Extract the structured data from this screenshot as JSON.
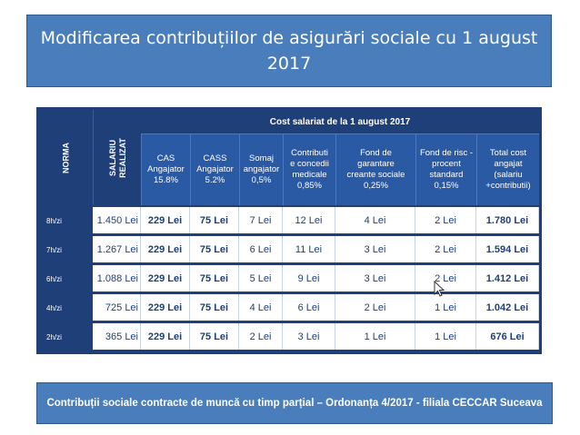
{
  "title": "Modificarea contribuțiilor de asigurări sociale cu 1 august 2017",
  "table": {
    "super_header": "Cost salariat de la  1 august 2017",
    "left_headers": {
      "norma": "NORMA",
      "salariu": [
        "SALARIU",
        "REALIZAT"
      ]
    },
    "columns": [
      {
        "lines": [
          "CAS",
          "Angajator",
          "15.8%"
        ]
      },
      {
        "lines": [
          "CASS",
          "Angajator",
          "5.2%"
        ]
      },
      {
        "lines": [
          "Somaj",
          "angajator",
          "0,5%"
        ]
      },
      {
        "lines": [
          "Contributi",
          "e concedii",
          "medicale",
          "0,85%"
        ]
      },
      {
        "lines": [
          "Fond de",
          "garantare",
          "creante sociale",
          "0,25%"
        ]
      },
      {
        "lines": [
          "Fond de risc -",
          "procent",
          "standard",
          "0,15%"
        ]
      },
      {
        "lines": [
          "Total cost",
          "angajat",
          "(salariu",
          "+contributii)"
        ]
      }
    ],
    "rows": [
      {
        "norma": "8h/zi",
        "salariu": "1.450 Lei",
        "cells": [
          "229 Lei",
          "75 Lei",
          "7 Lei",
          "12 Lei",
          "4 Lei",
          "2 Lei",
          "1.780 Lei"
        ]
      },
      {
        "norma": "7h/zi",
        "salariu": "1.267 Lei",
        "cells": [
          "229 Lei",
          "75 Lei",
          "6 Lei",
          "11 Lei",
          "3 Lei",
          "2 Lei",
          "1.594 Lei"
        ]
      },
      {
        "norma": "6h/zi",
        "salariu": "1.088 Lei",
        "cells": [
          "229 Lei",
          "75 Lei",
          "5 Lei",
          "9 Lei",
          "3 Lei",
          "2 Lei",
          "1.412 Lei"
        ]
      },
      {
        "norma": "4h/zi",
        "salariu": "725 Lei",
        "cells": [
          "229 Lei",
          "75 Lei",
          "4 Lei",
          "6 Lei",
          "2 Lei",
          "1 Lei",
          "1.042 Lei"
        ]
      },
      {
        "norma": "2h/zi",
        "salariu": "365 Lei",
        "cells": [
          "229 Lei",
          "75 Lei",
          "2 Lei",
          "3 Lei",
          "1 Lei",
          "1 Lei",
          "676 Lei"
        ]
      }
    ]
  },
  "footer": "Contribuții sociale contracte de muncă cu timp parțial – Ordonanța 4/2017 -  filiala CECCAR Suceava",
  "icons": {
    "cursor": "mouse-pointer-icon"
  }
}
